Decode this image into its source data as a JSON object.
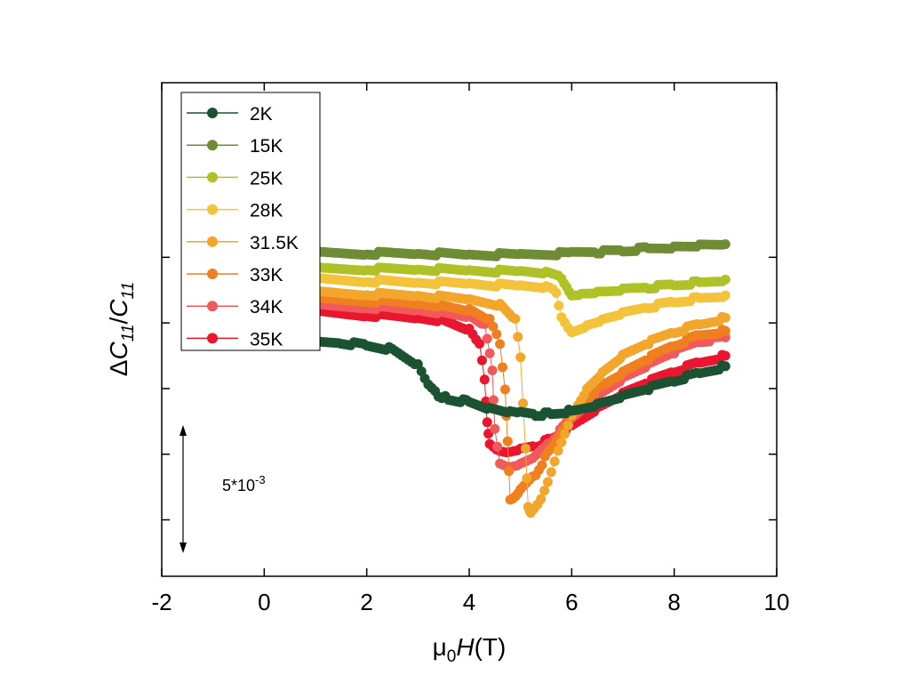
{
  "chart_data": {
    "type": "scatter",
    "xlabel": {
      "prefix": "μ",
      "sub": "0",
      "italic": "H",
      "suffix": "(T)"
    },
    "ylabel": {
      "delta": "Δ",
      "c1": "C",
      "s1": "11",
      "slash": "/",
      "c2": "C",
      "s2": "11"
    },
    "xlim": [
      -2,
      10
    ],
    "ylim": [
      -0.0143,
      0.0233
    ],
    "xticks": [
      -2,
      0,
      2,
      4,
      6,
      8,
      10
    ],
    "yticks": [
      -0.01,
      -0.005,
      0.0,
      0.005,
      0.01
    ],
    "y_tick_labels_shown": false,
    "grid": false,
    "legend_position": "top-left",
    "scale_bar": {
      "label_base": "5*10",
      "label_exp": "-3",
      "value": 0.005
    },
    "series": [
      {
        "name": "2K",
        "color": "#1b5232",
        "x": [
          0.8,
          1.5,
          2.0,
          2.5,
          3.0,
          3.2,
          3.4,
          3.6,
          4.0,
          4.4,
          4.8,
          5.0,
          5.3,
          5.6,
          6.0,
          6.5,
          7.0,
          7.5,
          8.0,
          8.5,
          9.0
        ],
        "y": [
          0.0035,
          0.0035,
          0.0033,
          0.003,
          0.0018,
          0.0002,
          -0.0005,
          -0.0008,
          -0.001,
          -0.0015,
          -0.0018,
          -0.0019,
          -0.002,
          -0.0019,
          -0.0017,
          -0.0012,
          -0.0006,
          0.0,
          0.0006,
          0.0012,
          0.0017
        ]
      },
      {
        "name": "15K",
        "color": "#6e8c33",
        "x": [
          1.0,
          2.0,
          3.0,
          4.0,
          5.0,
          6.0,
          6.5,
          7.0,
          7.5,
          8.0,
          8.5,
          9.0
        ],
        "y": [
          0.0103,
          0.0103,
          0.0103,
          0.0102,
          0.0102,
          0.0103,
          0.0104,
          0.0105,
          0.0107,
          0.0108,
          0.0109,
          0.011
        ]
      },
      {
        "name": "25K",
        "color": "#aec227",
        "x": [
          1.0,
          2.0,
          3.0,
          4.0,
          5.0,
          5.5,
          5.8,
          5.9,
          6.0,
          6.2,
          6.5,
          7.0,
          7.5,
          8.0,
          8.5,
          9.0
        ],
        "y": [
          0.0091,
          0.0091,
          0.0091,
          0.009,
          0.0089,
          0.0088,
          0.0085,
          0.0078,
          0.0071,
          0.0072,
          0.0073,
          0.0075,
          0.0077,
          0.0079,
          0.0081,
          0.0083
        ]
      },
      {
        "name": "28K",
        "color": "#f2c33b",
        "x": [
          1.0,
          2.0,
          3.0,
          4.0,
          5.0,
          5.5,
          5.7,
          5.8,
          6.0,
          6.3,
          6.6,
          7.0,
          7.5,
          8.0,
          8.5,
          9.0
        ],
        "y": [
          0.0083,
          0.0082,
          0.0081,
          0.008,
          0.0078,
          0.0077,
          0.0074,
          0.0055,
          0.0043,
          0.0048,
          0.0052,
          0.0057,
          0.0062,
          0.0066,
          0.0069,
          0.0071
        ]
      },
      {
        "name": "31.5K",
        "color": "#f2a62b",
        "x": [
          1.0,
          2.0,
          3.0,
          4.0,
          4.6,
          4.9,
          5.0,
          5.1,
          5.15,
          5.2,
          5.4,
          5.6,
          5.8,
          6.0,
          6.3,
          6.6,
          7.0,
          7.5,
          8.0,
          8.5,
          9.0
        ],
        "y": [
          0.0073,
          0.0072,
          0.0071,
          0.0068,
          0.0064,
          0.0052,
          0.0025,
          -0.0045,
          -0.009,
          -0.0095,
          -0.0085,
          -0.0065,
          -0.004,
          -0.002,
          0.0,
          0.0012,
          0.0025,
          0.0035,
          0.0043,
          0.0049,
          0.0054
        ]
      },
      {
        "name": "33K",
        "color": "#f07f20",
        "x": [
          1.0,
          2.0,
          3.0,
          3.5,
          4.0,
          4.4,
          4.6,
          4.7,
          4.75,
          4.8,
          4.9,
          5.0,
          5.3,
          5.6,
          6.0,
          6.5,
          7.0,
          7.5,
          8.0,
          8.5,
          9.0
        ],
        "y": [
          0.0068,
          0.0067,
          0.0065,
          0.0063,
          0.006,
          0.0052,
          0.0035,
          0.0,
          -0.004,
          -0.0085,
          -0.0083,
          -0.0078,
          -0.0065,
          -0.0045,
          -0.002,
          0.0,
          0.0012,
          0.0023,
          0.0033,
          0.0041,
          0.0044
        ]
      },
      {
        "name": "34K",
        "color": "#f15a5a",
        "x": [
          1.0,
          2.0,
          3.0,
          3.5,
          4.0,
          4.3,
          4.45,
          4.5,
          4.6,
          4.8,
          5.0,
          5.3,
          5.6,
          6.0,
          6.5,
          7.0,
          7.5,
          8.0,
          8.5,
          9.0
        ],
        "y": [
          0.0063,
          0.0062,
          0.006,
          0.0058,
          0.0055,
          0.0048,
          0.0015,
          -0.003,
          -0.0057,
          -0.006,
          -0.0058,
          -0.0052,
          -0.004,
          -0.0022,
          -0.0005,
          0.0008,
          0.0018,
          0.0028,
          0.0036,
          0.0039
        ]
      },
      {
        "name": "35K",
        "color": "#e8162f",
        "x": [
          1.0,
          2.0,
          3.0,
          3.5,
          4.0,
          4.2,
          4.3,
          4.35,
          4.4,
          4.6,
          4.8,
          5.0,
          5.3,
          5.6,
          6.0,
          6.5,
          7.0,
          7.5,
          8.0,
          8.5,
          9.0
        ],
        "y": [
          0.0058,
          0.0056,
          0.0054,
          0.0052,
          0.0045,
          0.0033,
          0.0008,
          -0.0025,
          -0.0042,
          -0.0048,
          -0.0049,
          -0.0047,
          -0.0044,
          -0.0038,
          -0.0028,
          -0.0015,
          -0.0004,
          0.0005,
          0.0013,
          0.002,
          0.0025
        ]
      }
    ]
  }
}
